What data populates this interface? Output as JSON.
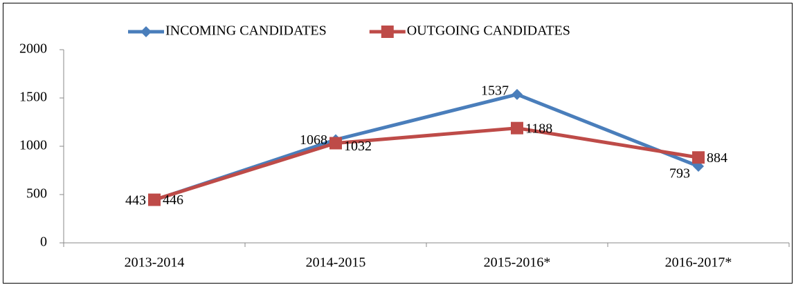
{
  "chart_data": {
    "type": "line",
    "categories": [
      "2013-2014",
      "2014-2015",
      "2015-2016*",
      "2016-2017*"
    ],
    "series": [
      {
        "name": "INCOMING CANDIDATES",
        "color": "#4a7ebb",
        "marker": "diamond",
        "values": [
          443,
          1068,
          1537,
          793
        ]
      },
      {
        "name": "OUTGOING CANDIDATES",
        "color": "#be4b48",
        "marker": "square",
        "values": [
          446,
          1032,
          1188,
          884
        ]
      }
    ],
    "ylim": [
      0,
      2000
    ],
    "yticks": [
      0,
      500,
      1000,
      1500,
      2000
    ],
    "legend": "top"
  }
}
